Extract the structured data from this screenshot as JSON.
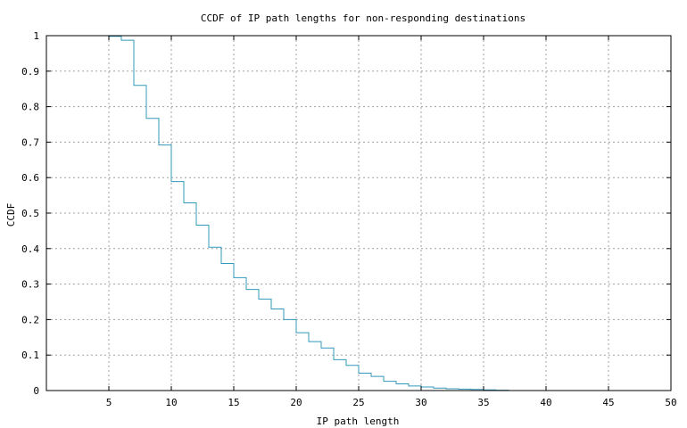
{
  "chart_data": {
    "type": "line",
    "title": "CCDF of IP path lengths for non-responding destinations",
    "xlabel": "IP path length",
    "ylabel": "CCDF",
    "xlim": [
      0,
      50
    ],
    "ylim": [
      0,
      1
    ],
    "x_ticks": [
      5,
      10,
      15,
      20,
      25,
      30,
      35,
      40,
      45,
      50
    ],
    "y_ticks": [
      0,
      0.1,
      0.2,
      0.3,
      0.4,
      0.5,
      0.6,
      0.7,
      0.8,
      0.9,
      1
    ],
    "grid": true,
    "line_style": "step",
    "colors": {
      "series": "#3399bb"
    },
    "series": [
      {
        "x": [
          4,
          5,
          6,
          7,
          8,
          9,
          10,
          11,
          12,
          13,
          14,
          15,
          16,
          17,
          18,
          19,
          20,
          21,
          22,
          23,
          24,
          25,
          26,
          27,
          28,
          29,
          30,
          31,
          32,
          33,
          34,
          35,
          36,
          37
        ],
        "values": [
          1.0,
          0.998,
          0.987,
          0.86,
          0.767,
          0.692,
          0.589,
          0.529,
          0.466,
          0.404,
          0.358,
          0.318,
          0.285,
          0.258,
          0.23,
          0.2,
          0.163,
          0.138,
          0.12,
          0.087,
          0.071,
          0.049,
          0.04,
          0.026,
          0.019,
          0.013,
          0.01,
          0.007,
          0.005,
          0.004,
          0.003,
          0.002,
          0.001,
          0.0
        ]
      }
    ]
  }
}
